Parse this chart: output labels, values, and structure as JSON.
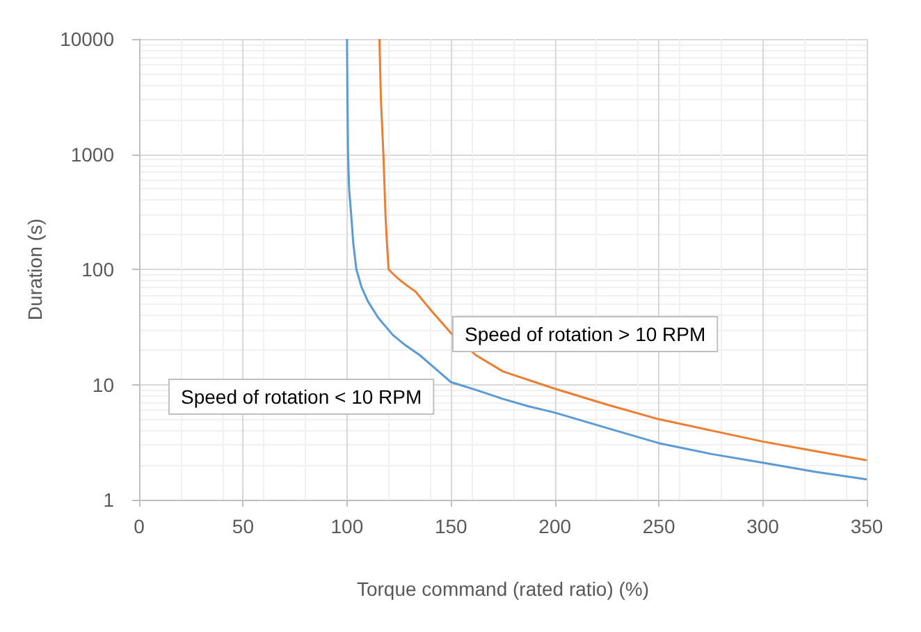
{
  "chart_data": {
    "type": "line",
    "xlabel": "Torque command (rated ratio) (%)",
    "ylabel": "Duration (s)",
    "log": "y",
    "grid": true,
    "marker": "none",
    "xlim": [
      0,
      350
    ],
    "xticks": [
      0,
      50,
      100,
      150,
      200,
      250,
      300,
      350
    ],
    "ylim": [
      1,
      10000
    ],
    "yticks": [
      1,
      10,
      100,
      1000,
      10000
    ],
    "series": [
      {
        "color": "#5b9bd5",
        "x": [
          100,
          100.2,
          100.5,
          101,
          102,
          103,
          104.5,
          107,
          110,
          115,
          122,
          128,
          135,
          142,
          150,
          162,
          175,
          187,
          200,
          225,
          250,
          275,
          300,
          325,
          350
        ],
        "values": [
          10000,
          3000,
          1000,
          500,
          300,
          170,
          100,
          70,
          53,
          38,
          27,
          22,
          18,
          14,
          10.5,
          9,
          7.5,
          6.5,
          5.7,
          4.2,
          3.1,
          2.5,
          2.1,
          1.75,
          1.5
        ]
      },
      {
        "color": "#ed7d31",
        "x": [
          115.6,
          116.3,
          117.5,
          118.5,
          119.2,
          120,
          122,
          125,
          129,
          133,
          140,
          150,
          162,
          175,
          187,
          200,
          225,
          250,
          275,
          300,
          325,
          350
        ],
        "values": [
          10000,
          3000,
          1000,
          300,
          170,
          100,
          92,
          82,
          72,
          64,
          45,
          28,
          18,
          13,
          11,
          9.2,
          6.7,
          5,
          4,
          3.2,
          2.65,
          2.2
        ]
      }
    ],
    "annotations": [
      "Speed of rotation > 10 RPM",
      "Speed of rotation < 10 RPM"
    ]
  }
}
